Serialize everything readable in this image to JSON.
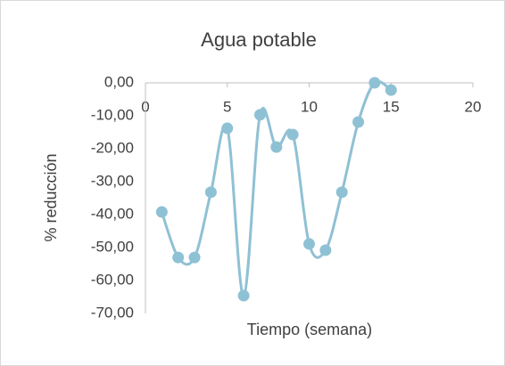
{
  "chart_data": {
    "type": "scatter",
    "title": "Agua potable",
    "x_label": "Tiempo (semana)",
    "y_label": "% reducción",
    "xlim": [
      0,
      20
    ],
    "xticks": [
      0,
      5,
      10,
      15,
      20
    ],
    "ylim": [
      -70,
      0
    ],
    "yticks": [
      {
        "value": 0,
        "label": "0,00"
      },
      {
        "value": -10,
        "label": "-10,00"
      },
      {
        "value": -20,
        "label": "-20,00"
      },
      {
        "value": -30,
        "label": "-30,00"
      },
      {
        "value": -40,
        "label": "-40,00"
      },
      {
        "value": -50,
        "label": "-50,00"
      },
      {
        "value": -60,
        "label": "-60,00"
      },
      {
        "value": -70,
        "label": "-70,00"
      }
    ],
    "grid": false,
    "smooth": true,
    "series": [
      {
        "color": "#8fc1d4",
        "x": [
          1,
          2,
          3,
          4,
          5,
          6,
          7,
          8,
          9,
          10,
          11,
          12,
          13,
          14,
          15
        ],
        "values": [
          -39.2,
          -53,
          -53,
          -33.2,
          -13.8,
          -64.6,
          -9.7,
          -19.5,
          -15.7,
          -48.9,
          -50.8,
          -33.2,
          -11.9,
          0,
          -2.2
        ]
      }
    ]
  }
}
